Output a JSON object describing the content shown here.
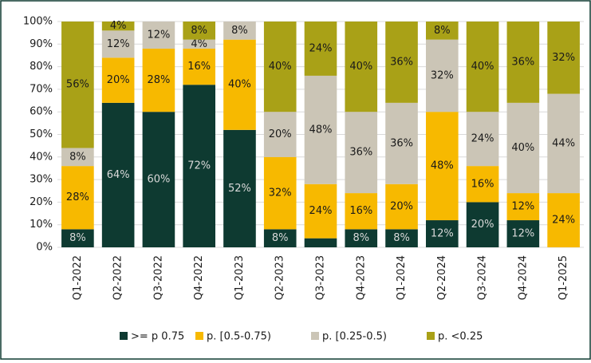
{
  "chart_data": {
    "type": "stacked_bar",
    "categories": [
      "Q1-2022",
      "Q2-2022",
      "Q3-2022",
      "Q4-2022",
      "Q1-2023",
      "Q2-2023",
      "Q3-2023",
      "Q4-2023",
      "Q1-2024",
      "Q2-2024",
      "Q3-2024",
      "Q4-2024",
      "Q1-2025"
    ],
    "series": [
      {
        "name": ">= p 0.75",
        "color": "#0e3a31",
        "label_color": "#d9d9d9",
        "values": [
          8,
          64,
          60,
          72,
          52,
          8,
          4,
          8,
          8,
          12,
          20,
          12,
          0
        ],
        "value_labels": [
          "8%",
          "64%",
          "60%",
          "72%",
          "52%",
          "8%",
          null,
          "8%",
          "8%",
          "12%",
          "20%",
          "12%",
          null
        ]
      },
      {
        "name": "p. [0.5-0.75)",
        "color": "#f7b900",
        "label_color": "#1a1a1a",
        "values": [
          28,
          20,
          28,
          16,
          40,
          32,
          24,
          16,
          20,
          48,
          16,
          12,
          24
        ],
        "value_labels": [
          "28%",
          "20%",
          "28%",
          "16%",
          "40%",
          "32%",
          "24%",
          "16%",
          "20%",
          "48%",
          "16%",
          "12%",
          "24%"
        ]
      },
      {
        "name": "p. [0.25-0.5)",
        "color": "#cbc5b6",
        "label_color": "#1a1a1a",
        "values": [
          8,
          12,
          12,
          4,
          8,
          20,
          48,
          36,
          36,
          32,
          24,
          40,
          44
        ],
        "value_labels": [
          "8%",
          "12%",
          "12%",
          "4%",
          "8%",
          "20%",
          "48%",
          "36%",
          "36%",
          "32%",
          "24%",
          "40%",
          "44%"
        ]
      },
      {
        "name": "p. <0.25",
        "color": "#a9a117",
        "label_color": "#1a1a1a",
        "values": [
          56,
          4,
          0,
          8,
          0,
          40,
          24,
          40,
          36,
          8,
          40,
          36,
          32
        ],
        "value_labels": [
          "56%",
          "4%",
          null,
          "8%",
          null,
          "40%",
          "24%",
          "40%",
          "36%",
          "8%",
          "40%",
          "36%",
          "32%"
        ]
      }
    ],
    "ylim": [
      0,
      100
    ],
    "yticks": [
      {
        "value": 0,
        "label": "0%"
      },
      {
        "value": 10,
        "label": "10%"
      },
      {
        "value": 20,
        "label": "20%"
      },
      {
        "value": 30,
        "label": "30%"
      },
      {
        "value": 40,
        "label": "40%"
      },
      {
        "value": 50,
        "label": "50%"
      },
      {
        "value": 60,
        "label": "60%"
      },
      {
        "value": 70,
        "label": "70%"
      },
      {
        "value": 80,
        "label": "80%"
      },
      {
        "value": 90,
        "label": "90%"
      },
      {
        "value": 100,
        "label": "100%"
      }
    ],
    "grid": true,
    "legend": "bottom"
  }
}
